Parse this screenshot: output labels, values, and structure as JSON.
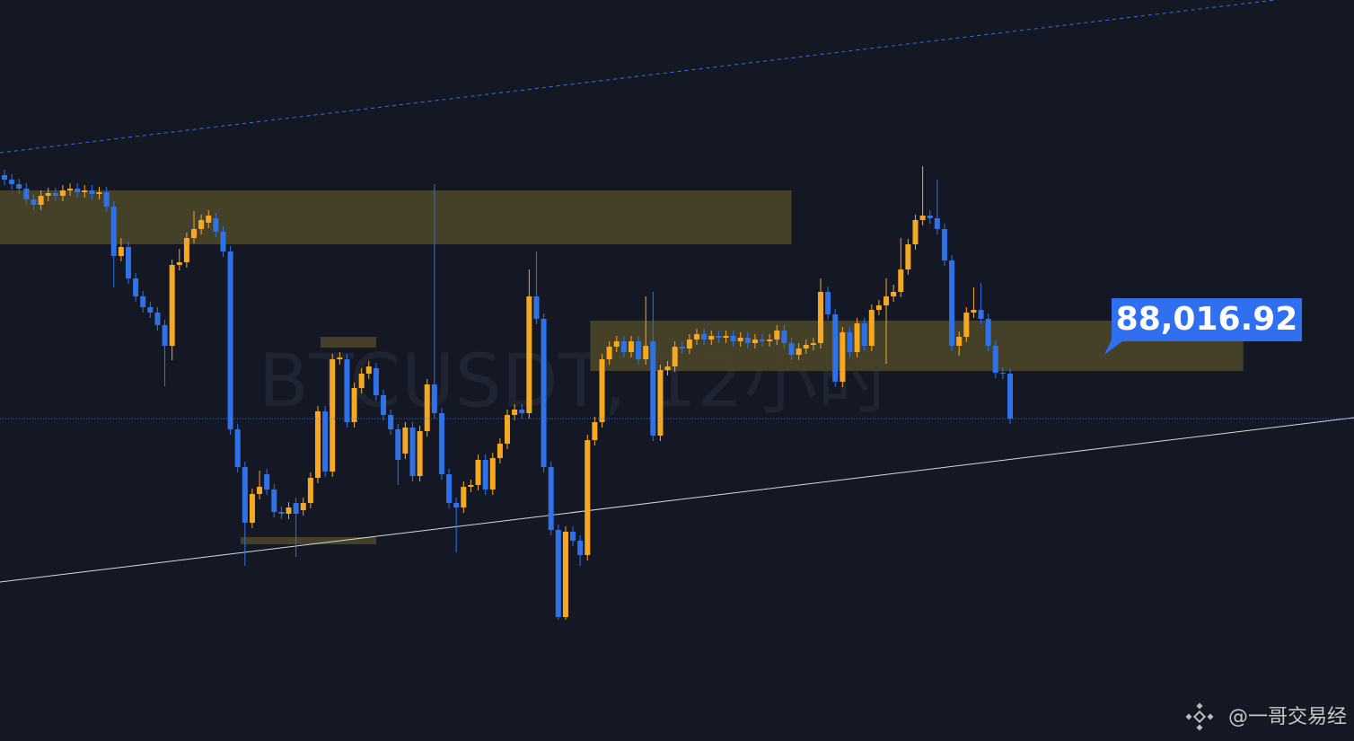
{
  "chart_data": {
    "type": "candlestick",
    "title": "BTCUSDT, 12小时",
    "last_price_label": "88,016.92",
    "credit": "@一哥交易经",
    "up_color": "#f7a823",
    "down_color": "#2f72e8",
    "zone_color": "#4a4529",
    "ylim": [
      80840,
      97340
    ],
    "ohlc": [
      [
        93440,
        93560,
        93220,
        93340
      ],
      [
        93340,
        93460,
        93120,
        93240
      ],
      [
        93240,
        93360,
        93020,
        93140
      ],
      [
        93140,
        93260,
        92780,
        92900
      ],
      [
        92900,
        93020,
        92660,
        92780
      ],
      [
        92780,
        93100,
        92660,
        92980
      ],
      [
        92980,
        93160,
        92860,
        93040
      ],
      [
        93040,
        93160,
        92860,
        92980
      ],
      [
        92980,
        93220,
        92860,
        93100
      ],
      [
        93100,
        93260,
        92980,
        93140
      ],
      [
        93140,
        93260,
        92940,
        93060
      ],
      [
        93060,
        93220,
        92940,
        93100
      ],
      [
        93100,
        93220,
        92900,
        93020
      ],
      [
        93020,
        93180,
        92900,
        93060
      ],
      [
        93060,
        93180,
        92620,
        92740
      ],
      [
        92740,
        92860,
        90940,
        91640
      ],
      [
        91640,
        92040,
        91520,
        91840
      ],
      [
        91840,
        91960,
        91020,
        91140
      ],
      [
        91140,
        91260,
        90620,
        90740
      ],
      [
        90740,
        90860,
        90380,
        90500
      ],
      [
        90500,
        90620,
        90260,
        90380
      ],
      [
        90380,
        90500,
        89980,
        90100
      ],
      [
        90100,
        90220,
        88740,
        89640
      ],
      [
        89640,
        91560,
        89320,
        91440
      ],
      [
        91440,
        91800,
        91320,
        91500
      ],
      [
        91500,
        92160,
        91380,
        92040
      ],
      [
        92040,
        92640,
        91920,
        92240
      ],
      [
        92240,
        92560,
        92120,
        92440
      ],
      [
        92380,
        92660,
        92260,
        92540
      ],
      [
        92480,
        92600,
        92060,
        92180
      ],
      [
        92180,
        92300,
        91620,
        91740
      ],
      [
        91740,
        91860,
        87660,
        87780
      ],
      [
        87780,
        87900,
        86820,
        86940
      ],
      [
        86940,
        87060,
        84740,
        85700
      ],
      [
        85700,
        86460,
        85580,
        86340
      ],
      [
        86340,
        86860,
        86220,
        86500
      ],
      [
        86780,
        86900,
        86320,
        86440
      ],
      [
        86440,
        86560,
        85820,
        85940
      ],
      [
        85940,
        86060,
        85780,
        85900
      ],
      [
        85900,
        86160,
        85780,
        86040
      ],
      [
        86140,
        86260,
        84940,
        85900
      ],
      [
        85980,
        86260,
        85860,
        86140
      ],
      [
        86140,
        86820,
        86020,
        86700
      ],
      [
        86700,
        88300,
        86580,
        88180
      ],
      [
        88180,
        88300,
        86720,
        86840
      ],
      [
        86840,
        89460,
        86720,
        89340
      ],
      [
        89340,
        89500,
        89220,
        89380
      ],
      [
        89340,
        89460,
        87820,
        87940
      ],
      [
        87940,
        88820,
        87820,
        88700
      ],
      [
        88700,
        89140,
        88580,
        89020
      ],
      [
        89020,
        89300,
        88900,
        89180
      ],
      [
        89140,
        89260,
        88420,
        88540
      ],
      [
        88540,
        88660,
        87980,
        88100
      ],
      [
        88100,
        88220,
        87660,
        87780
      ],
      [
        87780,
        87900,
        86540,
        87100
      ],
      [
        87240,
        87940,
        87120,
        87820
      ],
      [
        87820,
        87940,
        86620,
        86740
      ],
      [
        86740,
        87860,
        86620,
        87740
      ],
      [
        87740,
        88900,
        87620,
        88780
      ],
      [
        88780,
        93240,
        88020,
        88140
      ],
      [
        88140,
        88260,
        86660,
        86780
      ],
      [
        86780,
        86900,
        86020,
        86140
      ],
      [
        86140,
        86260,
        85040,
        86040
      ],
      [
        86040,
        86620,
        85920,
        86500
      ],
      [
        86500,
        86660,
        86380,
        86540
      ],
      [
        86540,
        87220,
        86420,
        87100
      ],
      [
        87100,
        87220,
        86320,
        86440
      ],
      [
        86440,
        87260,
        86320,
        87140
      ],
      [
        87140,
        87580,
        87020,
        87460
      ],
      [
        87460,
        88220,
        87340,
        88100
      ],
      [
        88100,
        88340,
        87980,
        88220
      ],
      [
        88220,
        88340,
        88020,
        88140
      ],
      [
        88140,
        91340,
        88020,
        90740
      ],
      [
        90740,
        91740,
        90120,
        90240
      ],
      [
        90240,
        90360,
        86820,
        86940
      ],
      [
        86940,
        87060,
        85420,
        85540
      ],
      [
        85540,
        85660,
        83540,
        83600
      ],
      [
        83600,
        85620,
        83540,
        85500
      ],
      [
        85500,
        85620,
        85180,
        85300
      ],
      [
        85300,
        85420,
        84740,
        84980
      ],
      [
        84980,
        87660,
        84860,
        87540
      ],
      [
        87540,
        88060,
        87420,
        87940
      ],
      [
        87940,
        89460,
        87820,
        89340
      ],
      [
        89340,
        89740,
        89220,
        89620
      ],
      [
        89620,
        89860,
        89500,
        89740
      ],
      [
        89740,
        89860,
        89380,
        89500
      ],
      [
        89500,
        89860,
        89380,
        89740
      ],
      [
        89740,
        89860,
        89220,
        89340
      ],
      [
        89340,
        90740,
        89220,
        89640
      ],
      [
        89740,
        90840,
        87520,
        87640
      ],
      [
        87640,
        89220,
        87520,
        89100
      ],
      [
        89100,
        89300,
        88980,
        89180
      ],
      [
        89180,
        89740,
        89060,
        89620
      ],
      [
        89620,
        89740,
        89460,
        89580
      ],
      [
        89580,
        89900,
        89460,
        89780
      ],
      [
        89780,
        90020,
        89660,
        89900
      ],
      [
        89900,
        90020,
        89660,
        89780
      ],
      [
        89780,
        89980,
        89660,
        89860
      ],
      [
        89860,
        89980,
        89700,
        89820
      ],
      [
        89820,
        89980,
        89700,
        89860
      ],
      [
        89860,
        89980,
        89620,
        89740
      ],
      [
        89740,
        89940,
        89620,
        89820
      ],
      [
        89820,
        89940,
        89580,
        89700
      ],
      [
        89700,
        89900,
        89580,
        89780
      ],
      [
        89780,
        89900,
        89620,
        89740
      ],
      [
        89740,
        89900,
        89620,
        89780
      ],
      [
        89780,
        90100,
        89660,
        89980
      ],
      [
        89980,
        90100,
        89580,
        89700
      ],
      [
        89700,
        89820,
        89320,
        89440
      ],
      [
        89440,
        89700,
        89320,
        89580
      ],
      [
        89580,
        89780,
        89460,
        89660
      ],
      [
        89660,
        89820,
        89540,
        89700
      ],
      [
        89700,
        91140,
        89580,
        90840
      ],
      [
        90840,
        90960,
        90220,
        90340
      ],
      [
        90340,
        90460,
        88720,
        88840
      ],
      [
        88840,
        90060,
        88720,
        89940
      ],
      [
        89940,
        90060,
        89380,
        89500
      ],
      [
        89500,
        90260,
        89380,
        90140
      ],
      [
        90140,
        90260,
        89520,
        89640
      ],
      [
        89640,
        90560,
        89520,
        90440
      ],
      [
        90440,
        90660,
        90320,
        90540
      ],
      [
        90540,
        91140,
        89240,
        90740
      ],
      [
        90740,
        91000,
        90620,
        90840
      ],
      [
        90840,
        92040,
        90720,
        91340
      ],
      [
        91340,
        92020,
        91220,
        91900
      ],
      [
        91900,
        92560,
        91780,
        92440
      ],
      [
        92440,
        93640,
        92320,
        92540
      ],
      [
        92540,
        92660,
        92360,
        92480
      ],
      [
        92480,
        93340,
        92120,
        92240
      ],
      [
        92240,
        92360,
        91420,
        91540
      ],
      [
        91540,
        91660,
        89520,
        89640
      ],
      [
        89640,
        89960,
        89420,
        89840
      ],
      [
        89840,
        90500,
        89720,
        90380
      ],
      [
        90380,
        90940,
        90260,
        90440
      ],
      [
        90440,
        91040,
        90120,
        90240
      ],
      [
        90240,
        90360,
        89520,
        89640
      ],
      [
        89640,
        89760,
        88920,
        89040
      ],
      [
        89040,
        89160,
        88900,
        89020
      ],
      [
        89020,
        89140,
        87900,
        88016.92
      ]
    ],
    "zones": [
      {
        "from": 0,
        "to": 108,
        "high": 93100,
        "low": 91900
      },
      {
        "from": 81,
        "to": 170,
        "high": 90200,
        "low": 89080
      },
      {
        "from": 44,
        "to": 51,
        "high": 89840,
        "low": 89600
      },
      {
        "from": 33,
        "to": 51,
        "high": 85380,
        "low": 85220
      }
    ]
  }
}
